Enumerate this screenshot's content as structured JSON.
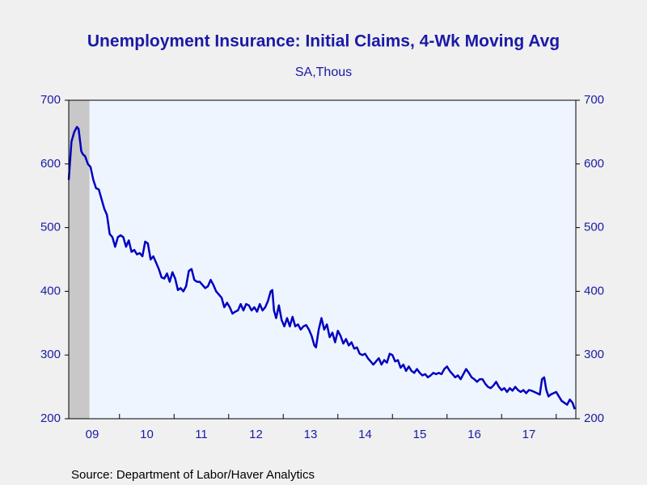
{
  "chart_data": {
    "type": "line",
    "title": "Unemployment Insurance: Initial Claims, 4-Wk Moving Avg",
    "subtitle": "SA,Thous",
    "source": "Source:  Department of Labor/Haver Analytics",
    "xlim": [
      2009.07,
      2018.36
    ],
    "xticks": [
      {
        "value": 2009.5,
        "label": "09"
      },
      {
        "value": 2010.5,
        "label": "10"
      },
      {
        "value": 2011.5,
        "label": "11"
      },
      {
        "value": 2012.5,
        "label": "12"
      },
      {
        "value": 2013.5,
        "label": "13"
      },
      {
        "value": 2014.5,
        "label": "14"
      },
      {
        "value": 2015.5,
        "label": "15"
      },
      {
        "value": 2016.5,
        "label": "16"
      },
      {
        "value": 2017.5,
        "label": "17"
      }
    ],
    "ylim": [
      200,
      700
    ],
    "yticks": [
      200,
      300,
      400,
      500,
      600,
      700
    ],
    "y2lim": [
      200,
      700
    ],
    "y2ticks": [
      200,
      300,
      400,
      500,
      600,
      700
    ],
    "recession": [
      2009.07,
      2009.45
    ],
    "recession_color": "#c8c8c8",
    "plot_background": "#eef5ff",
    "x": [
      2009.07,
      2009.12,
      2009.17,
      2009.22,
      2009.25,
      2009.3,
      2009.33,
      2009.37,
      2009.42,
      2009.47,
      2009.52,
      2009.57,
      2009.62,
      2009.67,
      2009.72,
      2009.77,
      2009.82,
      2009.87,
      2009.92,
      2009.97,
      2010.02,
      2010.07,
      2010.12,
      2010.17,
      2010.22,
      2010.27,
      2010.32,
      2010.37,
      2010.42,
      2010.47,
      2010.52,
      2010.57,
      2010.62,
      2010.67,
      2010.72,
      2010.77,
      2010.82,
      2010.87,
      2010.92,
      2010.97,
      2011.02,
      2011.07,
      2011.12,
      2011.17,
      2011.22,
      2011.27,
      2011.32,
      2011.37,
      2011.42,
      2011.47,
      2011.52,
      2011.57,
      2011.62,
      2011.67,
      2011.72,
      2011.77,
      2011.82,
      2011.87,
      2011.92,
      2011.97,
      2012.02,
      2012.07,
      2012.12,
      2012.17,
      2012.22,
      2012.27,
      2012.32,
      2012.37,
      2012.42,
      2012.47,
      2012.52,
      2012.57,
      2012.62,
      2012.67,
      2012.72,
      2012.77,
      2012.8,
      2012.83,
      2012.87,
      2012.92,
      2012.97,
      2013.02,
      2013.07,
      2013.12,
      2013.17,
      2013.22,
      2013.27,
      2013.32,
      2013.37,
      2013.42,
      2013.47,
      2013.52,
      2013.57,
      2013.6,
      2013.65,
      2013.7,
      2013.75,
      2013.8,
      2013.85,
      2013.9,
      2013.95,
      2014.0,
      2014.05,
      2014.1,
      2014.15,
      2014.2,
      2014.25,
      2014.3,
      2014.35,
      2014.4,
      2014.45,
      2014.5,
      2014.55,
      2014.6,
      2014.65,
      2014.7,
      2014.75,
      2014.8,
      2014.85,
      2014.9,
      2014.95,
      2015.0,
      2015.05,
      2015.1,
      2015.15,
      2015.2,
      2015.25,
      2015.3,
      2015.35,
      2015.4,
      2015.45,
      2015.5,
      2015.55,
      2015.6,
      2015.65,
      2015.7,
      2015.75,
      2015.8,
      2015.85,
      2015.9,
      2015.95,
      2016.0,
      2016.05,
      2016.1,
      2016.15,
      2016.2,
      2016.25,
      2016.3,
      2016.35,
      2016.4,
      2016.45,
      2016.5,
      2016.55,
      2016.6,
      2016.65,
      2016.7,
      2016.75,
      2016.8,
      2016.85,
      2016.9,
      2016.95,
      2017.0,
      2017.05,
      2017.1,
      2017.15,
      2017.2,
      2017.25,
      2017.3,
      2017.35,
      2017.4,
      2017.45,
      2017.5,
      2017.55,
      2017.6,
      2017.65,
      2017.7,
      2017.74,
      2017.78,
      2017.82,
      2017.86,
      2017.9,
      2017.95,
      2018.0,
      2018.05,
      2018.1,
      2018.15,
      2018.2,
      2018.25,
      2018.3,
      2018.34
    ],
    "series": [
      {
        "name": "Initial Claims",
        "color": "#0000c0",
        "values": [
          575,
          635,
          650,
          658,
          655,
          620,
          615,
          612,
          600,
          595,
          575,
          562,
          560,
          545,
          530,
          520,
          490,
          485,
          470,
          485,
          488,
          485,
          470,
          480,
          462,
          465,
          458,
          460,
          455,
          478,
          475,
          450,
          455,
          445,
          435,
          422,
          420,
          428,
          415,
          430,
          420,
          402,
          405,
          400,
          408,
          432,
          435,
          418,
          415,
          415,
          410,
          405,
          408,
          418,
          410,
          400,
          395,
          390,
          375,
          382,
          375,
          365,
          368,
          370,
          380,
          370,
          380,
          378,
          370,
          375,
          368,
          380,
          370,
          375,
          385,
          400,
          402,
          370,
          358,
          378,
          355,
          345,
          358,
          345,
          360,
          345,
          348,
          340,
          345,
          347,
          340,
          330,
          315,
          312,
          340,
          358,
          340,
          348,
          328,
          335,
          320,
          338,
          330,
          318,
          325,
          315,
          320,
          310,
          312,
          302,
          300,
          302,
          295,
          290,
          285,
          290,
          295,
          285,
          292,
          288,
          302,
          300,
          290,
          292,
          280,
          285,
          275,
          282,
          275,
          272,
          278,
          272,
          268,
          270,
          265,
          268,
          272,
          270,
          272,
          270,
          278,
          282,
          275,
          270,
          265,
          268,
          262,
          270,
          278,
          272,
          265,
          262,
          258,
          262,
          262,
          255,
          250,
          248,
          252,
          258,
          250,
          245,
          248,
          242,
          248,
          244,
          250,
          245,
          242,
          245,
          240,
          245,
          244,
          242,
          240,
          238,
          262,
          265,
          245,
          235,
          238,
          240,
          242,
          235,
          228,
          225,
          222,
          230,
          225,
          215
        ]
      }
    ]
  }
}
